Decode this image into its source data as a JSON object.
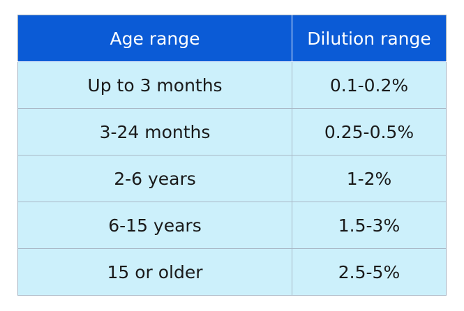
{
  "table": {
    "headers": [
      "Age range",
      "Dilution range"
    ],
    "rows": [
      [
        "Up to 3 months",
        "0.1-0.2%"
      ],
      [
        "3-24 months",
        "0.25-0.5%"
      ],
      [
        "2-6 years",
        "1-2%"
      ],
      [
        "6-15 years",
        "1.5-3%"
      ],
      [
        "15 or older",
        "2.5-5%"
      ]
    ]
  },
  "colors": {
    "header_bg": "#0b5bd6",
    "header_text": "#ffffff",
    "cell_bg": "#ccf0fb",
    "cell_text": "#1a1a1a"
  }
}
